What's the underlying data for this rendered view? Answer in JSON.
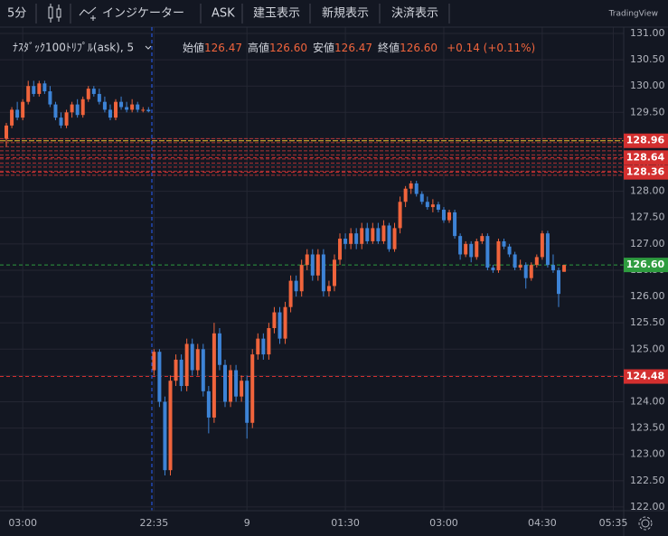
{
  "toolbar": {
    "interval": "5分",
    "indicators": "インジケーター",
    "buttons": [
      "ASK",
      "建玉表示",
      "新規表示",
      "決済表示"
    ],
    "brand": "TradingView"
  },
  "chart_data": {
    "type": "candlestick",
    "symbol": "ﾅｽﾀﾞｯｸ100ﾄﾘﾌﾟﾙ(ask), 5",
    "legend": [
      {
        "name": "始値",
        "value": "126.47"
      },
      {
        "name": "高値",
        "value": "126.60"
      },
      {
        "name": "安値",
        "value": "126.47"
      },
      {
        "name": "終値",
        "value": "126.60"
      }
    ],
    "change": "+0.14 (+0.11%)",
    "up_color": "#f0643c",
    "down_color": "#3d83d6",
    "candles": [
      [
        129.0,
        129.3,
        128.85,
        129.25
      ],
      [
        129.25,
        129.6,
        129.2,
        129.55
      ],
      [
        129.55,
        129.7,
        129.35,
        129.4
      ],
      [
        129.4,
        129.75,
        129.35,
        129.7
      ],
      [
        129.7,
        130.1,
        129.65,
        130.0
      ],
      [
        130.0,
        130.1,
        129.8,
        129.85
      ],
      [
        129.85,
        130.1,
        129.8,
        130.05
      ],
      [
        130.05,
        130.1,
        129.85,
        129.9
      ],
      [
        129.9,
        130.0,
        129.6,
        129.65
      ],
      [
        129.65,
        129.7,
        129.35,
        129.4
      ],
      [
        129.4,
        129.5,
        129.2,
        129.25
      ],
      [
        129.25,
        129.55,
        129.2,
        129.5
      ],
      [
        129.5,
        129.7,
        129.4,
        129.65
      ],
      [
        129.65,
        129.75,
        129.4,
        129.45
      ],
      [
        129.45,
        129.8,
        129.4,
        129.75
      ],
      [
        129.75,
        130.0,
        129.7,
        129.95
      ],
      [
        129.95,
        130.0,
        129.8,
        129.85
      ],
      [
        129.85,
        129.95,
        129.65,
        129.7
      ],
      [
        129.7,
        129.8,
        129.5,
        129.55
      ],
      [
        129.55,
        129.65,
        129.35,
        129.4
      ],
      [
        129.4,
        129.75,
        129.35,
        129.7
      ],
      [
        129.7,
        129.8,
        129.55,
        129.6
      ],
      [
        129.6,
        129.7,
        129.5,
        129.55
      ],
      [
        129.55,
        129.75,
        129.5,
        129.65
      ],
      [
        129.65,
        129.7,
        129.5,
        129.55
      ],
      [
        129.55,
        129.6,
        129.5,
        129.55
      ],
      [
        129.55,
        129.6,
        129.5,
        129.52
      ],
      [
        124.6,
        125.0,
        124.5,
        124.95
      ],
      [
        124.95,
        125.0,
        123.9,
        124.0
      ],
      [
        124.0,
        124.1,
        122.6,
        122.7
      ],
      [
        122.7,
        124.5,
        122.6,
        124.4
      ],
      [
        124.4,
        124.9,
        124.3,
        124.8
      ],
      [
        124.8,
        124.9,
        124.2,
        124.3
      ],
      [
        124.3,
        125.2,
        124.2,
        125.1
      ],
      [
        125.1,
        125.2,
        124.5,
        124.6
      ],
      [
        124.6,
        125.1,
        124.5,
        125.0
      ],
      [
        125.0,
        125.1,
        124.1,
        124.2
      ],
      [
        124.2,
        124.3,
        123.4,
        123.7
      ],
      [
        123.7,
        125.5,
        123.6,
        125.3
      ],
      [
        125.3,
        125.4,
        124.6,
        124.7
      ],
      [
        124.7,
        124.8,
        123.9,
        124.0
      ],
      [
        124.0,
        124.7,
        123.9,
        124.6
      ],
      [
        124.6,
        124.7,
        124.0,
        124.1
      ],
      [
        124.1,
        124.5,
        124.0,
        124.4
      ],
      [
        124.4,
        124.5,
        123.3,
        123.6
      ],
      [
        123.6,
        125.0,
        123.5,
        124.9
      ],
      [
        124.9,
        125.3,
        124.8,
        125.2
      ],
      [
        125.2,
        125.3,
        124.8,
        124.9
      ],
      [
        124.9,
        125.5,
        124.8,
        125.4
      ],
      [
        125.4,
        125.8,
        125.3,
        125.7
      ],
      [
        125.7,
        125.8,
        125.1,
        125.2
      ],
      [
        125.2,
        125.9,
        125.1,
        125.8
      ],
      [
        125.8,
        126.4,
        125.7,
        126.3
      ],
      [
        126.3,
        126.4,
        126.0,
        126.1
      ],
      [
        126.1,
        126.7,
        126.0,
        126.6
      ],
      [
        126.6,
        126.9,
        126.5,
        126.8
      ],
      [
        126.8,
        126.9,
        126.3,
        126.4
      ],
      [
        126.4,
        126.9,
        126.3,
        126.8
      ],
      [
        126.8,
        126.9,
        126.0,
        126.1
      ],
      [
        126.1,
        126.3,
        126.0,
        126.2
      ],
      [
        126.2,
        126.8,
        126.1,
        126.7
      ],
      [
        126.7,
        127.2,
        126.6,
        127.1
      ],
      [
        127.1,
        127.2,
        126.9,
        127.0
      ],
      [
        127.0,
        127.3,
        126.9,
        127.2
      ],
      [
        127.2,
        127.3,
        126.9,
        127.0
      ],
      [
        127.0,
        127.4,
        126.9,
        127.3
      ],
      [
        127.3,
        127.4,
        127.0,
        127.05
      ],
      [
        127.05,
        127.4,
        127.0,
        127.3
      ],
      [
        127.3,
        127.4,
        127.0,
        127.05
      ],
      [
        127.05,
        127.45,
        127.0,
        127.35
      ],
      [
        127.35,
        127.4,
        126.85,
        126.9
      ],
      [
        126.9,
        127.4,
        126.85,
        127.3
      ],
      [
        127.3,
        127.9,
        127.2,
        127.8
      ],
      [
        127.8,
        128.1,
        127.7,
        128.05
      ],
      [
        128.05,
        128.2,
        127.95,
        128.15
      ],
      [
        128.15,
        128.2,
        127.9,
        127.95
      ],
      [
        127.95,
        128.0,
        127.75,
        127.8
      ],
      [
        127.8,
        127.9,
        127.65,
        127.7
      ],
      [
        127.7,
        127.85,
        127.6,
        127.75
      ],
      [
        127.75,
        127.8,
        127.6,
        127.65
      ],
      [
        127.65,
        127.7,
        127.4,
        127.45
      ],
      [
        127.45,
        127.65,
        127.4,
        127.6
      ],
      [
        127.6,
        127.65,
        127.1,
        127.15
      ],
      [
        127.15,
        127.2,
        126.7,
        126.8
      ],
      [
        126.8,
        127.05,
        126.75,
        127.0
      ],
      [
        127.0,
        127.05,
        126.65,
        126.75
      ],
      [
        126.75,
        127.1,
        126.7,
        127.05
      ],
      [
        127.05,
        127.2,
        127.0,
        127.15
      ],
      [
        127.15,
        127.2,
        126.5,
        126.55
      ],
      [
        126.55,
        126.6,
        126.45,
        126.5
      ],
      [
        126.5,
        127.1,
        126.45,
        127.05
      ],
      [
        127.05,
        127.1,
        126.9,
        126.95
      ],
      [
        126.95,
        127.0,
        126.75,
        126.8
      ],
      [
        126.8,
        126.85,
        126.5,
        126.55
      ],
      [
        126.55,
        126.7,
        126.5,
        126.6
      ],
      [
        126.6,
        126.65,
        126.15,
        126.35
      ],
      [
        126.35,
        126.65,
        126.3,
        126.6
      ],
      [
        126.6,
        126.8,
        126.55,
        126.75
      ],
      [
        126.75,
        127.25,
        126.7,
        127.2
      ],
      [
        127.2,
        127.25,
        126.55,
        126.6
      ],
      [
        126.6,
        126.8,
        126.45,
        126.5
      ],
      [
        126.5,
        126.55,
        125.8,
        126.05
      ],
      [
        126.47,
        126.6,
        126.47,
        126.6
      ]
    ],
    "xlim": [
      -1.16,
      112.9
    ],
    "xticks": [
      {
        "value": 3,
        "label": "03:00"
      },
      {
        "value": 27,
        "label": "22:35"
      },
      {
        "value": 44,
        "label": "9"
      },
      {
        "value": 62,
        "label": "01:30"
      },
      {
        "value": 80,
        "label": "03:00"
      },
      {
        "value": 98,
        "label": "04:30"
      },
      {
        "value": 111,
        "label": "05:35"
      }
    ],
    "ylim": [
      121.93,
      131.12
    ],
    "yticks": [
      {
        "value": 122,
        "label": "122.00"
      },
      {
        "value": 122.5,
        "label": "122.50"
      },
      {
        "value": 123,
        "label": "123.00"
      },
      {
        "value": 123.5,
        "label": "123.50"
      },
      {
        "value": 124,
        "label": "124.00"
      },
      {
        "value": 124.5,
        "label": "124.50"
      },
      {
        "value": 125,
        "label": "125.00"
      },
      {
        "value": 125.5,
        "label": "125.50"
      },
      {
        "value": 126,
        "label": "126.00"
      },
      {
        "value": 126.5,
        "label": "126.50"
      },
      {
        "value": 127,
        "label": "127.00"
      },
      {
        "value": 127.5,
        "label": "127.50"
      },
      {
        "value": 128,
        "label": "128.00"
      },
      {
        "value": 128.5,
        "label": "128.50"
      },
      {
        "value": 129,
        "label": "129.00"
      },
      {
        "value": 129.5,
        "label": "129.50"
      },
      {
        "value": 130,
        "label": "130.00"
      },
      {
        "value": 130.5,
        "label": "130.50"
      },
      {
        "value": 131,
        "label": "131.00"
      }
    ],
    "grid": true,
    "band": [
      128.28,
      129.0
    ],
    "band_color": "#d63a3a",
    "price_lines": [
      {
        "value": 128.96,
        "label": "128.96",
        "color": "#d32f2f",
        "line_color": "#f2c12e"
      },
      {
        "value": 128.64,
        "label": "128.64",
        "color": "#d32f2f",
        "line_color": "#d32f2f"
      },
      {
        "value": 128.36,
        "label": "128.36",
        "color": "#d32f2f",
        "line_color": "#d32f2f"
      },
      {
        "value": 126.6,
        "label": "126.60",
        "color": "#2e9c3f",
        "line_color": "#2e9c3f"
      },
      {
        "value": 124.48,
        "label": "124.48",
        "color": "#d32f2f",
        "line_color": "#d32f2f"
      }
    ]
  }
}
